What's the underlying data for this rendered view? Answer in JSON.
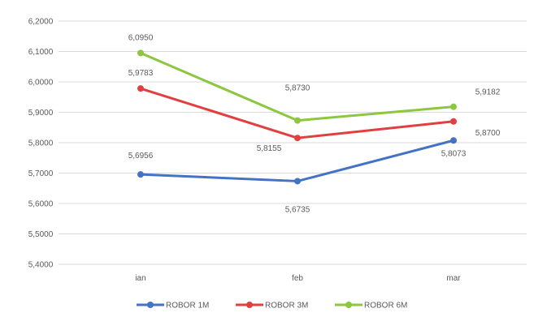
{
  "chart_data": {
    "type": "line",
    "categories": [
      "ian",
      "feb",
      "mar"
    ],
    "series": [
      {
        "name": "ROBOR 1M",
        "values": [
          5.6956,
          5.6735,
          5.8073
        ],
        "labels": [
          "5,6956",
          "5,6735",
          "5,8073"
        ],
        "color": "#4472c4"
      },
      {
        "name": "ROBOR 3M",
        "values": [
          5.9783,
          5.8155,
          5.87
        ],
        "labels": [
          "5,9783",
          "5,8155",
          "5,8700"
        ],
        "color": "#e04040"
      },
      {
        "name": "ROBOR 6M",
        "values": [
          6.095,
          5.873,
          5.9182
        ],
        "labels": [
          "6,0950",
          "5,8730",
          "5,9182"
        ],
        "color": "#8dc63f"
      }
    ],
    "ylim": [
      5.4,
      6.2
    ],
    "yticks": [
      5.4,
      5.5,
      5.6,
      5.7,
      5.8,
      5.9,
      6.0,
      6.1,
      6.2
    ],
    "ytick_labels": [
      "5,4000",
      "5,5000",
      "5,6000",
      "5,7000",
      "5,8000",
      "5,9000",
      "6,0000",
      "6,1000",
      "6,2000"
    ],
    "grid": true,
    "legend": "bottom",
    "title": "",
    "xlabel": "",
    "ylabel": ""
  }
}
